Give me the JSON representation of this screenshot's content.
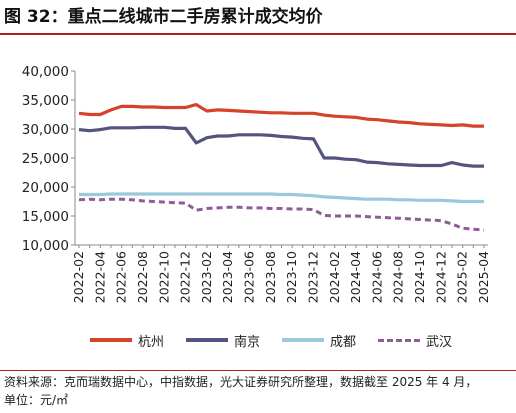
{
  "title": "图 32：重点二线城市二手房累计成交均价",
  "footer": {
    "source": "资料来源：克而瑞数据中心，中指数据，光大证券研究所整理，数据截至 2025 年 4 月，",
    "unit": "单位：元/㎡"
  },
  "colors": {
    "rule": "#b02020",
    "hangzhou": "#d5432a",
    "nanjing": "#545480",
    "chengdu": "#9ac8dc",
    "wuhan": "#8f5c98",
    "axis": "#888888"
  },
  "chart_data": {
    "type": "line",
    "ylim": [
      10000,
      40000
    ],
    "yticks": [
      "10,000",
      "15,000",
      "20,000",
      "25,000",
      "30,000",
      "35,000",
      "40,000"
    ],
    "ytick_values": [
      10000,
      15000,
      20000,
      25000,
      30000,
      35000,
      40000
    ],
    "x": [
      "2022-02",
      "2022-03",
      "2022-04",
      "2022-05",
      "2022-06",
      "2022-07",
      "2022-08",
      "2022-09",
      "2022-10",
      "2022-11",
      "2022-12",
      "2023-01",
      "2023-02",
      "2023-03",
      "2023-04",
      "2023-05",
      "2023-06",
      "2023-07",
      "2023-08",
      "2023-09",
      "2023-10",
      "2023-11",
      "2023-12",
      "2024-01",
      "2024-02",
      "2024-03",
      "2024-04",
      "2024-05",
      "2024-06",
      "2024-07",
      "2024-08",
      "2024-09",
      "2024-10",
      "2024-11",
      "2024-12",
      "2025-01",
      "2025-02",
      "2025-03",
      "2025-04"
    ],
    "xtick_labels": [
      "2022-02",
      "2022-04",
      "2022-06",
      "2022-08",
      "2022-10",
      "2022-12",
      "2023-02",
      "2023-04",
      "2023-06",
      "2023-08",
      "2023-10",
      "2023-12",
      "2024-02",
      "2024-04",
      "2024-06",
      "2024-08",
      "2024-10",
      "2024-12",
      "2025-02",
      "2025-04"
    ],
    "series": [
      {
        "name": "杭州",
        "color": "#d5432a",
        "dashed": false,
        "values": [
          32700,
          32500,
          32500,
          33300,
          33900,
          33900,
          33800,
          33800,
          33700,
          33700,
          33700,
          34200,
          33100,
          33300,
          33200,
          33100,
          33000,
          32900,
          32800,
          32800,
          32700,
          32700,
          32700,
          32400,
          32200,
          32100,
          32000,
          31700,
          31600,
          31400,
          31200,
          31100,
          30900,
          30800,
          30700,
          30600,
          30700,
          30500,
          30500
        ]
      },
      {
        "name": "南京",
        "color": "#545480",
        "dashed": false,
        "values": [
          29900,
          29700,
          29900,
          30200,
          30200,
          30200,
          30300,
          30300,
          30300,
          30100,
          30100,
          27600,
          28500,
          28800,
          28800,
          29000,
          29000,
          29000,
          28900,
          28700,
          28600,
          28400,
          28300,
          25000,
          25000,
          24800,
          24700,
          24300,
          24200,
          24000,
          23900,
          23800,
          23700,
          23700,
          23700,
          24200,
          23800,
          23600,
          23600
        ]
      },
      {
        "name": "成都",
        "color": "#9ac8dc",
        "dashed": false,
        "values": [
          18700,
          18700,
          18700,
          18800,
          18800,
          18800,
          18800,
          18800,
          18800,
          18800,
          18800,
          18800,
          18800,
          18800,
          18800,
          18800,
          18800,
          18800,
          18800,
          18700,
          18700,
          18600,
          18500,
          18300,
          18200,
          18100,
          18000,
          17900,
          17900,
          17900,
          17800,
          17800,
          17700,
          17700,
          17700,
          17600,
          17500,
          17500,
          17500
        ]
      },
      {
        "name": "武汉",
        "color": "#8f5c98",
        "dashed": true,
        "values": [
          17800,
          17900,
          17800,
          17900,
          17900,
          17800,
          17600,
          17500,
          17400,
          17300,
          17200,
          16000,
          16300,
          16400,
          16500,
          16500,
          16400,
          16400,
          16300,
          16300,
          16200,
          16200,
          16100,
          15100,
          15000,
          15000,
          15000,
          14900,
          14800,
          14700,
          14600,
          14500,
          14400,
          14300,
          14200,
          13600,
          12900,
          12700,
          12600
        ]
      }
    ]
  }
}
